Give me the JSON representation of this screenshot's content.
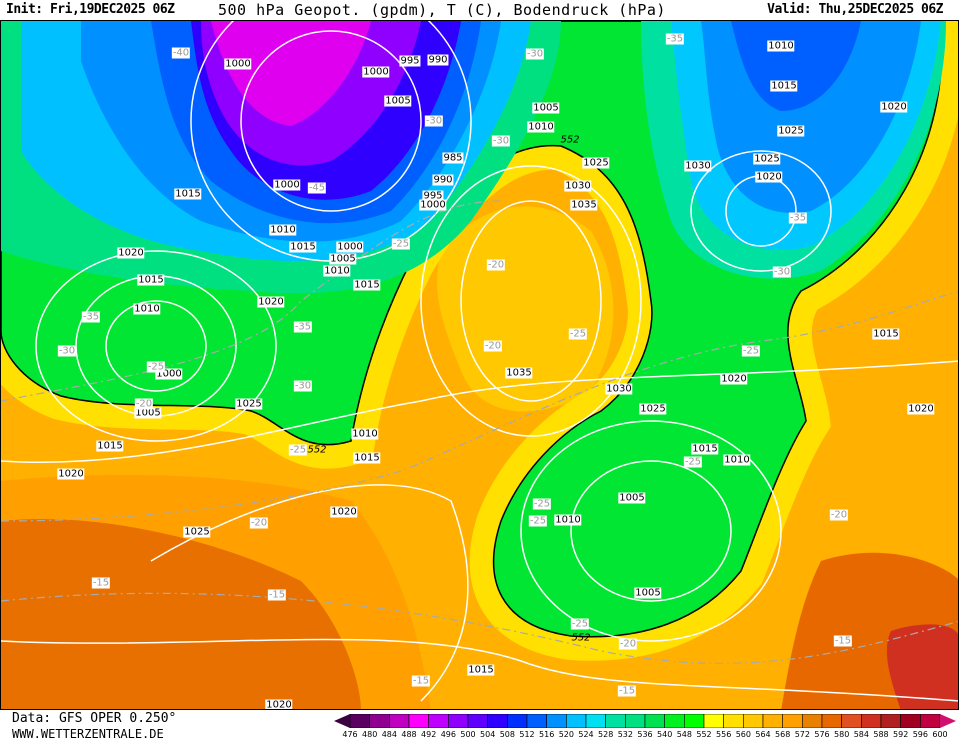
{
  "header": {
    "init": "Init: Fri,19DEC2025 06Z",
    "title": "500 hPa Geopot. (gpdm), T (C), Bodendruck (hPa)",
    "valid": "Valid: Thu,25DEC2025 06Z"
  },
  "map": {
    "pressure_labels": [
      "1000",
      "1000",
      "995",
      "990",
      "1005",
      "1005",
      "1010",
      "985",
      "990",
      "995",
      "1000",
      "1000",
      "1010",
      "1015",
      "1000",
      "1005",
      "1010",
      "1015",
      "1015",
      "1020",
      "1015",
      "1010",
      "1020",
      "1000",
      "1005",
      "1025",
      "1015",
      "1020",
      "1010",
      "1015",
      "1020",
      "1025",
      "1015",
      "1020",
      "1025",
      "1030",
      "1035",
      "1035",
      "1030",
      "1025",
      "1020",
      "1015",
      "1010",
      "1005",
      "1010",
      "1005",
      "1030",
      "1010",
      "1015",
      "1025",
      "1025",
      "1020",
      "1020",
      "1015",
      "1020"
    ],
    "temperature_labels": [
      "-40",
      "-45",
      "-30",
      "-30",
      "-30",
      "-35",
      "-35",
      "-30",
      "-25",
      "-20",
      "-25",
      "-20",
      "-25",
      "-35",
      "-30",
      "-35",
      "-25",
      "-30",
      "-20",
      "-25",
      "-20",
      "-20",
      "-25",
      "-25",
      "-25",
      "-25",
      "-20",
      "-15",
      "-15",
      "-15",
      "-15",
      "-15"
    ],
    "gpdm_552_labels": [
      "552",
      "552",
      "552"
    ],
    "colors": {
      "green": "#00e632",
      "yellow": "#ffff00",
      "orange": "#ffb000",
      "dark_orange": "#e87000",
      "blue": "#0060ff",
      "purple": "#8000ff",
      "cyan": "#00c8ff"
    }
  },
  "footer": {
    "data_source": "Data: GFS OPER 0.250°",
    "website": "WWW.WETTERZENTRALE.DE"
  },
  "colorbar": {
    "labels": [
      "476",
      "480",
      "484",
      "488",
      "492",
      "496",
      "500",
      "504",
      "508",
      "512",
      "516",
      "520",
      "524",
      "528",
      "532",
      "536",
      "540",
      "548",
      "552",
      "556",
      "560",
      "564",
      "568",
      "572",
      "576",
      "580",
      "584",
      "588",
      "592",
      "596",
      "600"
    ],
    "colors": [
      "#5a0060",
      "#900090",
      "#c000c0",
      "#ff00ff",
      "#c000ff",
      "#9000ff",
      "#6000ff",
      "#3000ff",
      "#0030ff",
      "#0060ff",
      "#0090ff",
      "#00c0ff",
      "#00e0f0",
      "#00e0a0",
      "#00e080",
      "#00e050",
      "#00f020",
      "#00ff00",
      "#ffff00",
      "#ffe000",
      "#ffc800",
      "#ffb000",
      "#ffa000",
      "#e88000",
      "#e86800",
      "#e05020",
      "#d03020",
      "#b02020",
      "#a00020",
      "#c00040"
    ],
    "low_arrow_color": "#3a0040",
    "high_arrow_color": "#d01070"
  }
}
